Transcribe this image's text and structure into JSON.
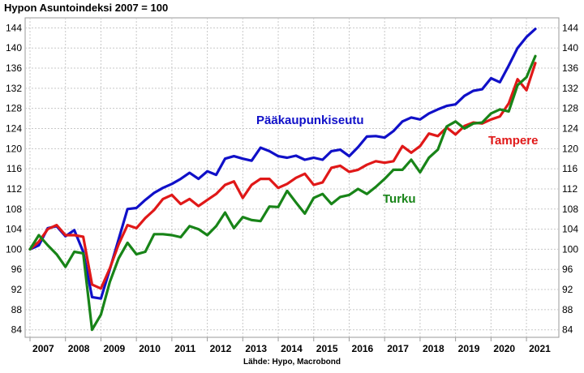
{
  "chart_data": {
    "type": "line",
    "title": "Hypon Asuntoindeksi 2007 = 100",
    "source": "Lähde: Hypo, Macrobond",
    "x_labels": [
      "2007",
      "2008",
      "2009",
      "2010",
      "2011",
      "2012",
      "2013",
      "2014",
      "2015",
      "2016",
      "2017",
      "2018",
      "2019",
      "2020",
      "2021"
    ],
    "yticks": [
      84,
      88,
      92,
      96,
      100,
      104,
      108,
      112,
      116,
      120,
      124,
      128,
      132,
      136,
      140,
      144
    ],
    "ylim": [
      82.5,
      146
    ],
    "grid": true,
    "series": [
      {
        "name": "Pääkaupunkiseutu",
        "color": "#1010c8",
        "values": [
          100,
          100.8,
          104.2,
          104.6,
          102.6,
          103.8,
          99.5,
          90.5,
          90.2,
          96,
          102,
          108,
          108.2,
          109.8,
          111.2,
          112.2,
          113,
          114,
          115.2,
          114,
          115.5,
          114.8,
          118,
          118.5,
          118,
          117.6,
          120.2,
          119.5,
          118.5,
          118.2,
          118.6,
          117.8,
          118.2,
          117.8,
          119.5,
          119.8,
          118.5,
          120.3,
          122.4,
          122.5,
          122.2,
          123.5,
          125.4,
          126.2,
          125.8,
          127,
          127.8,
          128.5,
          128.8,
          130.5,
          131.5,
          131.8,
          134,
          133.2,
          136.5,
          140,
          142.2,
          143.8
        ]
      },
      {
        "name": "Tampere",
        "color": "#e01818",
        "values": [
          100,
          101.5,
          104,
          104.8,
          102.8,
          102.8,
          102.5,
          93,
          92.2,
          96.2,
          101,
          104.8,
          104.2,
          106.2,
          107.8,
          110,
          110.8,
          109,
          110,
          108.6,
          109.8,
          111,
          112.8,
          113.5,
          110.2,
          112.8,
          114,
          114,
          112.2,
          113,
          114.2,
          115,
          112.8,
          113.3,
          116.2,
          116.6,
          115.4,
          115.8,
          116.8,
          117.5,
          117.2,
          117.5,
          120.5,
          119.2,
          120.5,
          123,
          122.5,
          124.2,
          122.8,
          124.5,
          125.2,
          125,
          125.8,
          126.4,
          129,
          133.8,
          131.6,
          137
        ]
      },
      {
        "name": "Turku",
        "color": "#188418",
        "values": [
          100,
          102.8,
          100.8,
          99,
          96.5,
          99.5,
          99.2,
          84,
          87,
          93.5,
          98.2,
          101.3,
          99,
          99.5,
          103,
          103,
          102.8,
          102.4,
          104.6,
          104,
          102.8,
          104.6,
          107.3,
          104.2,
          106.4,
          105.8,
          105.6,
          108.5,
          108.4,
          111.6,
          109.3,
          107.1,
          110.2,
          111,
          109,
          110.4,
          110.8,
          112,
          111,
          112.4,
          114,
          115.8,
          115.8,
          117.8,
          115.3,
          118.2,
          119.8,
          124.4,
          125.4,
          124,
          125,
          125.2,
          127,
          127.8,
          127.4,
          132.6,
          134.2,
          138.4
        ]
      }
    ],
    "annotations": [
      {
        "text": "Pääkaupunkiseutu",
        "series": 0
      },
      {
        "text": "Tampere",
        "series": 1
      },
      {
        "text": "Turku",
        "series": 2
      }
    ]
  }
}
